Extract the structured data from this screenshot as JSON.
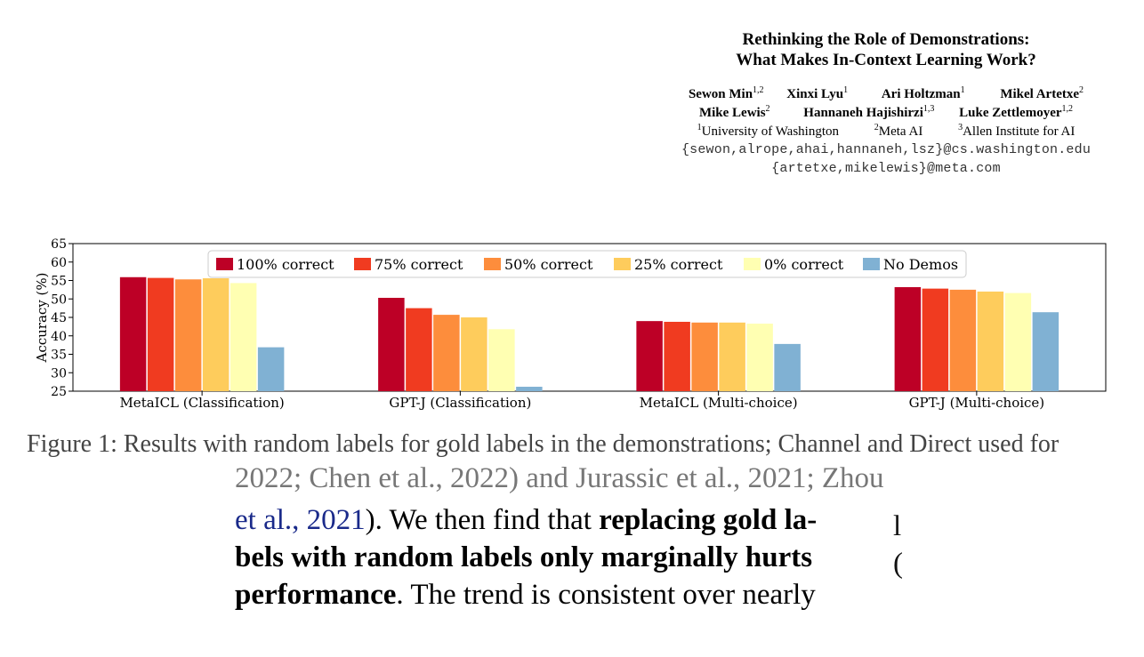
{
  "header": {
    "title_line1": "Rethinking the Role of Demonstrations:",
    "title_line2": "What Makes In-Context Learning Work?",
    "authors_row1": [
      {
        "name": "Sewon Min",
        "sup": "1,2"
      },
      {
        "name": "Xinxi Lyu",
        "sup": "1"
      },
      {
        "name": "Ari Holtzman",
        "sup": "1"
      },
      {
        "name": "Mikel Artetxe",
        "sup": "2"
      }
    ],
    "authors_row2": [
      {
        "name": "Mike Lewis",
        "sup": "2"
      },
      {
        "name": "Hannaneh Hajishirzi",
        "sup": "1,3"
      },
      {
        "name": "Luke Zettlemoyer",
        "sup": "1,2"
      }
    ],
    "affiliations": [
      {
        "sup": "1",
        "name": "University of Washington"
      },
      {
        "sup": "2",
        "name": "Meta AI"
      },
      {
        "sup": "3",
        "name": "Allen Institute for AI"
      }
    ],
    "email1": "{sewon,alrope,ahai,hannaneh,lsz}@cs.washington.edu",
    "email2": "{artetxe,mikelewis}@meta.com"
  },
  "chart_data": {
    "type": "bar",
    "ylabel": "Accuracy (%)",
    "ylim": [
      25,
      65
    ],
    "yticks": [
      25,
      30,
      35,
      40,
      45,
      50,
      55,
      60,
      65
    ],
    "legend_placement": "top",
    "grid": false,
    "categories": [
      "MetaICL (Classification)",
      "GPT-J (Classification)",
      "MetaICL (Multi-choice)",
      "GPT-J (Multi-choice)"
    ],
    "series": [
      {
        "name": "100% correct",
        "color": "#bd0026",
        "values": [
          55.9,
          50.3,
          44.0,
          53.2
        ]
      },
      {
        "name": "75% correct",
        "color": "#f03b20",
        "values": [
          55.7,
          47.5,
          43.8,
          52.8
        ]
      },
      {
        "name": "50% correct",
        "color": "#fd8d3c",
        "values": [
          55.3,
          45.7,
          43.6,
          52.5
        ]
      },
      {
        "name": "25% correct",
        "color": "#fecc5c",
        "values": [
          55.6,
          45.0,
          43.6,
          52.0
        ]
      },
      {
        "name": "0% correct",
        "color": "#ffffb2",
        "values": [
          54.3,
          41.8,
          43.3,
          51.6
        ]
      },
      {
        "name": "No Demos",
        "color": "#80b1d3",
        "values": [
          36.9,
          26.2,
          37.8,
          46.4
        ]
      }
    ]
  },
  "body": {
    "cut_caption": "Figure 1: Results with random labels for gold labels in the demonstrations; Channel and Direct used for",
    "cut_top": "2022; Chen et al., 2022) and Jurassic et al., 2021; Zhou",
    "line1_cite": "et al., 2021",
    "line1_rest": "). We then find that ",
    "line1_bold": "replacing gold la-",
    "line2_bold": "bels with random labels only marginally hurts",
    "line3_bold": "performance",
    "line3_rest": ". The trend is consistent over nearly",
    "side_char1": "l",
    "side_char2": "("
  }
}
